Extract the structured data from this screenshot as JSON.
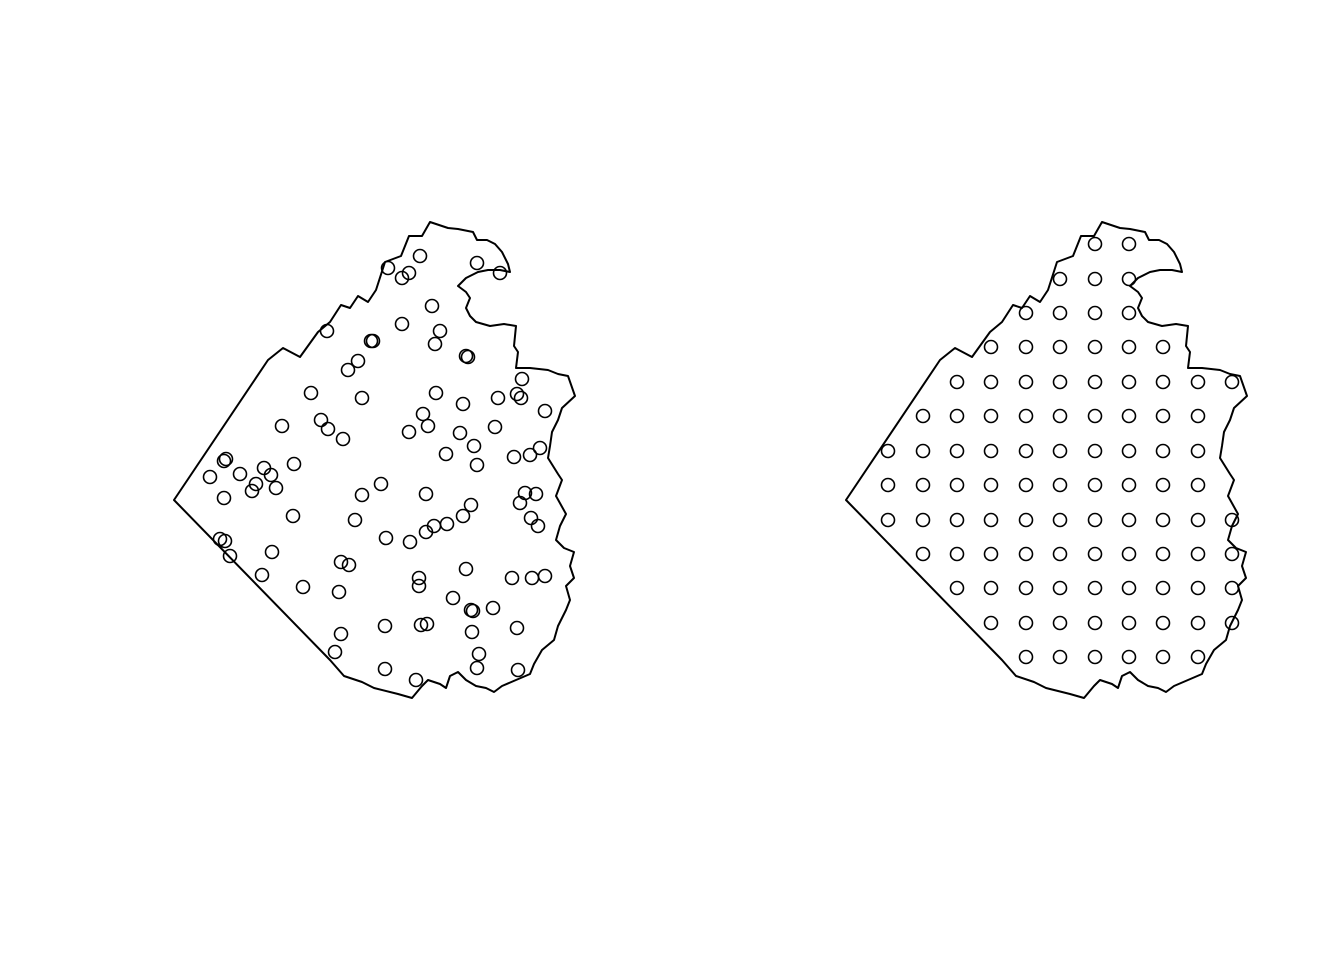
{
  "figure": {
    "panels": [
      {
        "name": "random-sample"
      },
      {
        "name": "regular-grid-sample"
      }
    ],
    "colors": {
      "stroke": "#000000",
      "background": "#ffffff"
    },
    "marker": "open-circle"
  }
}
